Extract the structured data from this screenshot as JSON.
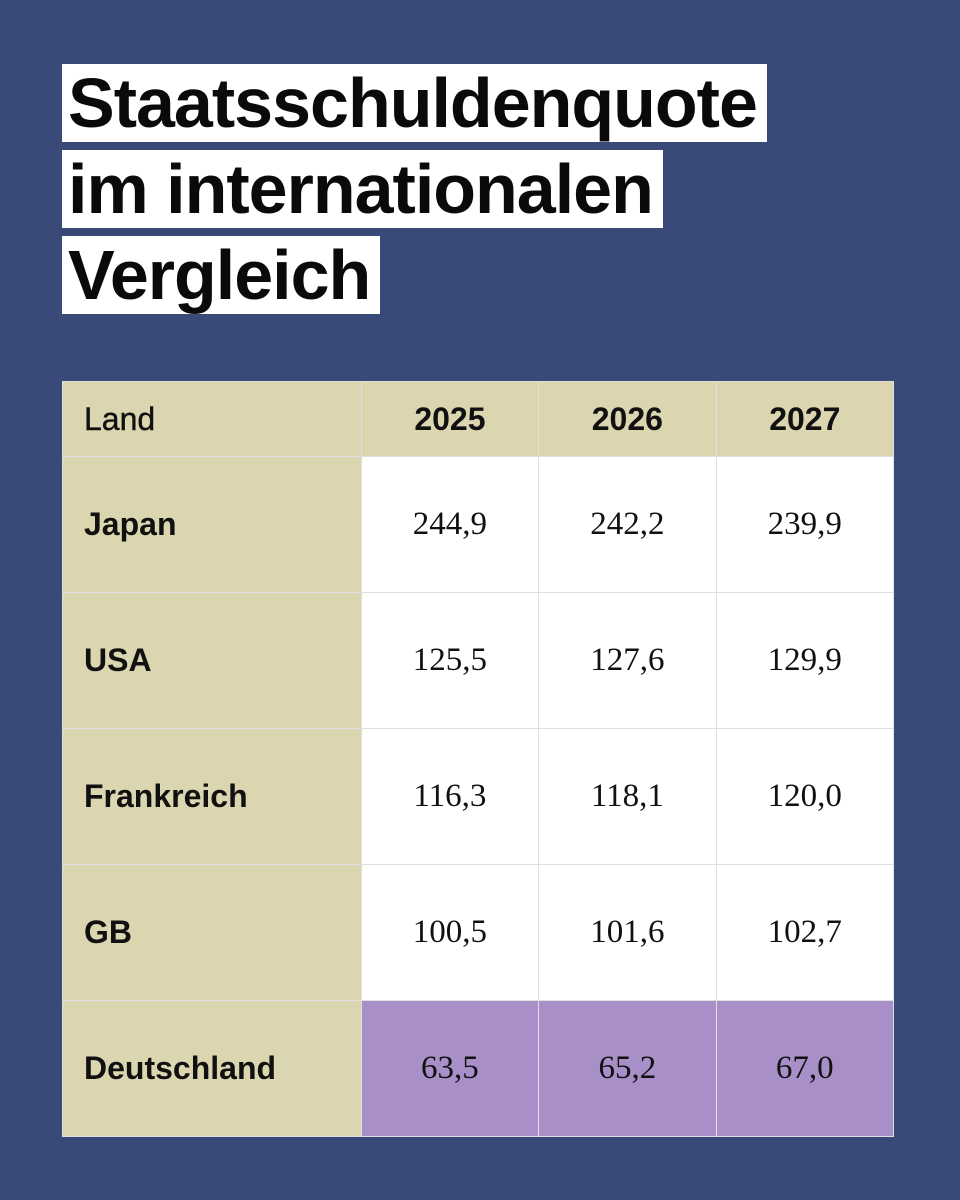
{
  "title_lines": [
    "Staatsschuldenquote",
    "im internationalen",
    "Vergleich"
  ],
  "colors": {
    "background": "#394a78",
    "label_fill": "#dbd6b0",
    "highlight_fill": "#a98fc8",
    "cell_fill": "#ffffff"
  },
  "chart_data": {
    "type": "table",
    "title": "Staatsschuldenquote im internationalen Vergleich",
    "columns": [
      "Land",
      "2025",
      "2026",
      "2027"
    ],
    "rows": [
      {
        "country": "Japan",
        "values": [
          "244,9",
          "242,2",
          "239,9"
        ],
        "highlight": false
      },
      {
        "country": "USA",
        "values": [
          "125,5",
          "127,6",
          "129,9"
        ],
        "highlight": false
      },
      {
        "country": "Frankreich",
        "values": [
          "116,3",
          "118,1",
          "120,0"
        ],
        "highlight": false
      },
      {
        "country": "GB",
        "values": [
          "100,5",
          "101,6",
          "102,7"
        ],
        "highlight": false
      },
      {
        "country": "Deutschland",
        "values": [
          "63,5",
          "65,2",
          "67,0"
        ],
        "highlight": true
      }
    ]
  }
}
